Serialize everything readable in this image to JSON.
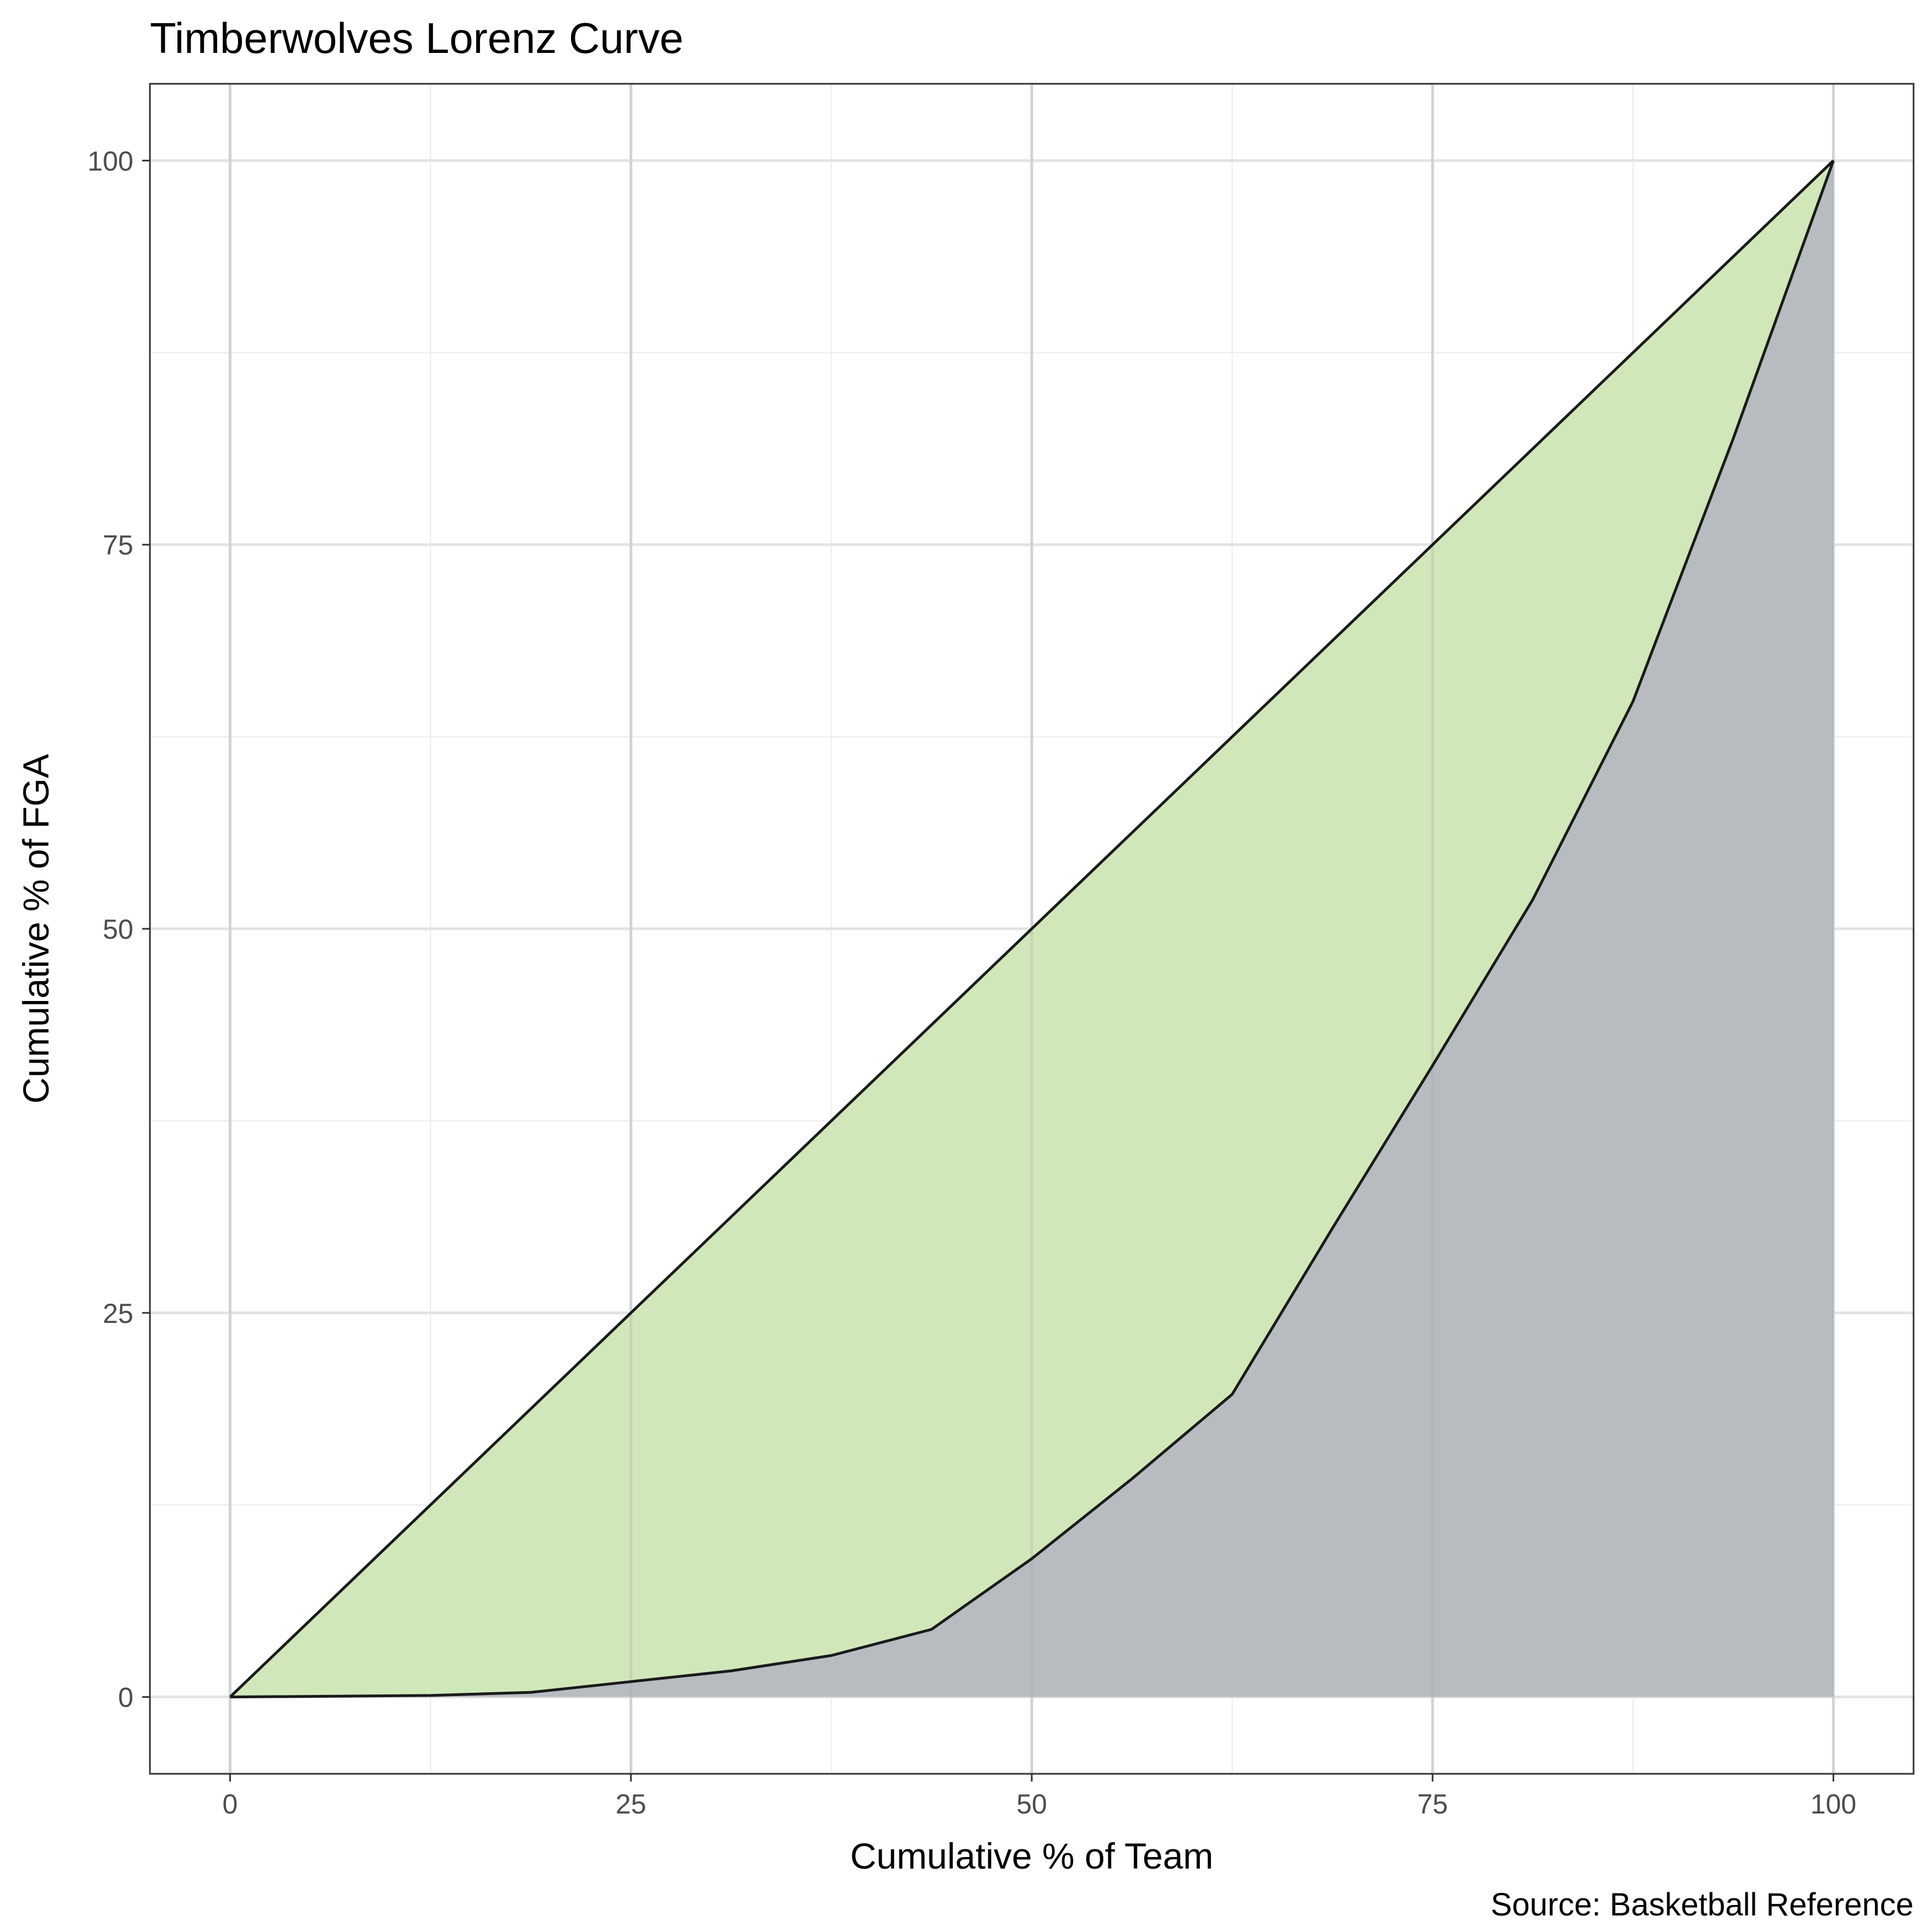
{
  "chart_data": {
    "type": "area",
    "title": "Timberwolves Lorenz Curve",
    "xlabel": "Cumulative % of Team",
    "ylabel": "Cumulative % of FGA",
    "caption": "Source: Basketball Reference",
    "xlim": [
      -5,
      105
    ],
    "ylim": [
      -5,
      105
    ],
    "x_ticks": [
      0,
      25,
      50,
      75,
      100
    ],
    "y_ticks": [
      0,
      25,
      50,
      75,
      100
    ],
    "x_tick_labels": [
      "0",
      "25",
      "50",
      "75",
      "100"
    ],
    "y_tick_labels": [
      "0",
      "25",
      "50",
      "75",
      "100"
    ],
    "grid": true,
    "legend": "none",
    "series": [
      {
        "role": "equality-line",
        "x": [
          0,
          100
        ],
        "y": [
          0,
          100
        ],
        "fill": "#d0e7b9",
        "line": "#1a1a1a"
      },
      {
        "role": "lorenz-curve",
        "x": [
          0,
          12.5,
          18.75,
          25,
          31.25,
          37.5,
          43.75,
          50,
          56.25,
          62.5,
          68.75,
          75,
          81.25,
          87.5,
          93.75,
          100
        ],
        "y": [
          0,
          0.1,
          0.3,
          1.0,
          1.7,
          2.7,
          4.4,
          9.0,
          14.2,
          19.7,
          30.5,
          41.1,
          51.9,
          64.8,
          81.9,
          100
        ],
        "fill": "#b4b9c0",
        "line": "#1a1a1a"
      }
    ]
  }
}
